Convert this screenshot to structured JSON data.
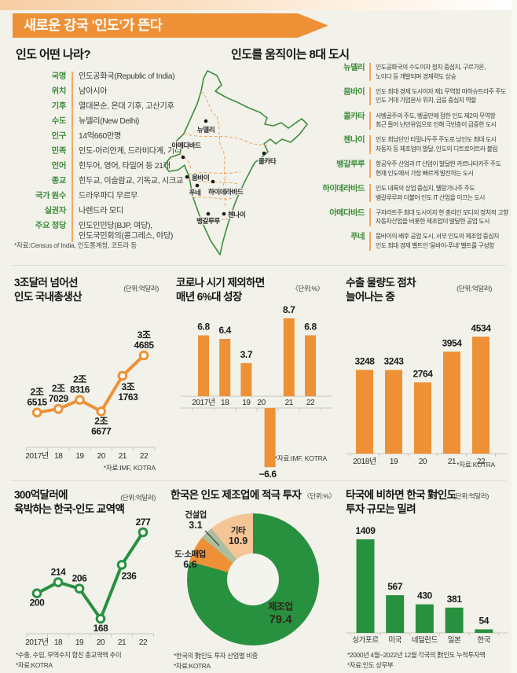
{
  "banner": {
    "title": "새로운 강국 '인도'가 뜬다"
  },
  "colors": {
    "orange": "#ee9136",
    "green": "#28913f",
    "peach": "#f6c596",
    "sage": "#a9bfa0",
    "axis": "#c8c7bb",
    "label_green": "#3f8e3c"
  },
  "sections": {
    "country_heading": "인도 어떤 나라?",
    "cities_heading": "인도를 움직이는 8대 도시"
  },
  "country_facts": {
    "rows": [
      {
        "label": "국명",
        "value": "인도공화국(Republic of India)"
      },
      {
        "label": "위치",
        "value": "남아시아"
      },
      {
        "label": "기후",
        "value": "열대몬순, 온대 기후, 고산기후"
      },
      {
        "label": "수도",
        "value": "뉴델리(New Delhi)"
      },
      {
        "label": "인구",
        "value": "14억660만명"
      },
      {
        "label": "민족",
        "value": "인도-아리안계, 드라비다계, 기타"
      },
      {
        "label": "언어",
        "value": "힌두어, 영어, 타밀어 등 21개"
      },
      {
        "label": "종교",
        "value": "힌두교, 이슬람교, 기독교, 시크교"
      },
      {
        "label": "국가 원수",
        "value": "드라우파디 무르무"
      },
      {
        "label": "실권자",
        "value": "나렌드라 모디"
      },
      {
        "label": "주요 정당",
        "value": "인도인민당(BJP, 여당),\n인도국민회의(콩그레스, 야당)"
      }
    ],
    "source": "*자료:Census of India, 인도통계청, 코트라 등"
  },
  "map_cities": [
    "뉴델리",
    "아메다바드",
    "콜카타",
    "뭄바이",
    "푸네",
    "하이데라바드",
    "뱅갈루루",
    "첸나이"
  ],
  "cities": [
    {
      "name": "뉴델리",
      "desc": "인도공화국의 수도이자 정치 중심지, 구르가온,\n노이다 등 개발되며 경제력도 상승"
    },
    {
      "name": "뭄바이",
      "desc": "인도 최대 경제 도시이자 제1 무역항 마하슈트라주 주도\n인도 거대 기업본사 위치, 금융 중심지 역할"
    },
    {
      "name": "콜카타",
      "desc": "서벵골주의 주도, 벵골만에 접한 인도 제2의 무역항\n최근 들어 난민유입으로 인해 극빈층이 급증한 도시"
    },
    {
      "name": "첸나이",
      "desc": "인도 최남단인 타밀나두주 주도로 남인도 최대 도시\n자동차 등 제조업이 발달, 인도의 디트로이트라 불림"
    },
    {
      "name": "뱅갈루루",
      "desc": "항공우주 산업과 IT 산업이 발달한 카르나타카주 주도\n현재 인도에서 가장 빠르게 발전하는 도시"
    },
    {
      "name": "하이데라바드",
      "desc": "인도 내륙의 상업 중심지, 텔랑가나주 주도\n뱅갈루루와 더불어 인도 IT 산업을 이끄는 도시"
    },
    {
      "name": "아메다바드",
      "desc": "구자라트주 최대 도시이자 현 총리인 모디의 정치적 고향\n자동차산업을 비롯한 제조업이 발달한 공업 도시"
    },
    {
      "name": "푸네",
      "desc": "뭄바이의 배후 공업 도시, 서부 인도의 제조업 중심지\n인도 최대 경제 벨트인 '뭄바이-푸네' 벨트를 구성함"
    }
  ],
  "chart_data": [
    {
      "id": "gdp",
      "type": "line",
      "title": "3조달러 넘어선\n인도 국내총생산",
      "unit": "(단위:억달러)",
      "categories": [
        "2017년",
        "18",
        "19",
        "20",
        "21",
        "22"
      ],
      "values": [
        26515,
        27029,
        28316,
        26677,
        31763,
        34685
      ],
      "point_labels": [
        "2조\n6515",
        "2조\n7029",
        "2조\n8316",
        "2조\n6677",
        "3조\n1763",
        "3조\n4685"
      ],
      "ylim": [
        25500,
        35500
      ],
      "source": "*자료:IMF, KOTRA",
      "color_key": "orange"
    },
    {
      "id": "growth",
      "type": "bar",
      "title": "코로나 시기 제외하면\n매년 6%대 성장",
      "unit": "〈단위:%〉",
      "categories": [
        "2017년",
        "18",
        "19",
        "20",
        "21",
        "22"
      ],
      "values": [
        6.8,
        6.4,
        3.7,
        -6.6,
        8.7,
        6.8
      ],
      "value_labels": [
        "6.8",
        "6.4",
        "3.7",
        "−6.6",
        "8.7",
        "6.8"
      ],
      "ylim": [
        -7,
        9
      ],
      "source": "*자료:IMF, KOTRA",
      "color_key": "orange"
    },
    {
      "id": "exports",
      "type": "bar",
      "title": "수출 물량도 점차\n늘어나는 중",
      "unit": "(단위:억달러)",
      "categories": [
        "2018년",
        "19",
        "20",
        "21",
        "22"
      ],
      "values": [
        3248,
        3243,
        2764,
        3954,
        4534
      ],
      "value_labels": [
        "3248",
        "3243",
        "2764",
        "3954",
        "4534"
      ],
      "ylim": [
        0,
        4800
      ],
      "source": "*자료:KOTRA",
      "color_key": "orange"
    },
    {
      "id": "trade",
      "type": "line",
      "title": "300억달러에\n육박하는 한국-인도 교역액",
      "unit": "(단위:억달러)",
      "categories": [
        "2017년",
        "18",
        "19",
        "20",
        "21",
        "22"
      ],
      "values": [
        200,
        214,
        206,
        168,
        236,
        277
      ],
      "point_labels": [
        "200",
        "214",
        "206",
        "168",
        "236",
        "277"
      ],
      "ylim": [
        140,
        310
      ],
      "footnotes": [
        "*수출, 수입, 무역수지 합친 총교역액 추이",
        "*자료:KOTRA"
      ],
      "color_key": "green"
    },
    {
      "id": "invest",
      "type": "donut",
      "title": "한국은 인도 제조업에 적극 투자",
      "unit": "〈단위:%〉",
      "segments": [
        {
          "label": "제조업",
          "value": 79.4,
          "color_key": "green"
        },
        {
          "label": "도·소매업",
          "value": 6.6,
          "color_key": "orange"
        },
        {
          "label": "건설업",
          "value": 3.1,
          "color_key": "sage"
        },
        {
          "label": "기타",
          "value": 10.9,
          "color_key": "peach"
        }
      ],
      "footnotes": [
        "*한국의 對인도 투자 산업별 비중",
        "*자료:KOTRA"
      ]
    },
    {
      "id": "fdi",
      "type": "bar",
      "title": "타국에 비하면 한국 對인도\n투자 규모는 밀려",
      "unit": "(단위:억달러)",
      "categories": [
        "싱가포르",
        "미국",
        "네덜란드",
        "일본",
        "한국"
      ],
      "values": [
        1409,
        567,
        430,
        381,
        54
      ],
      "value_labels": [
        "1409",
        "567",
        "430",
        "381",
        "54"
      ],
      "ylim": [
        0,
        1500
      ],
      "footnotes": [
        "*2000년 4월~2022년 12월 각국의 對인도 누적투자액",
        "*자료:인도 상무부"
      ],
      "color_key": "green"
    }
  ]
}
